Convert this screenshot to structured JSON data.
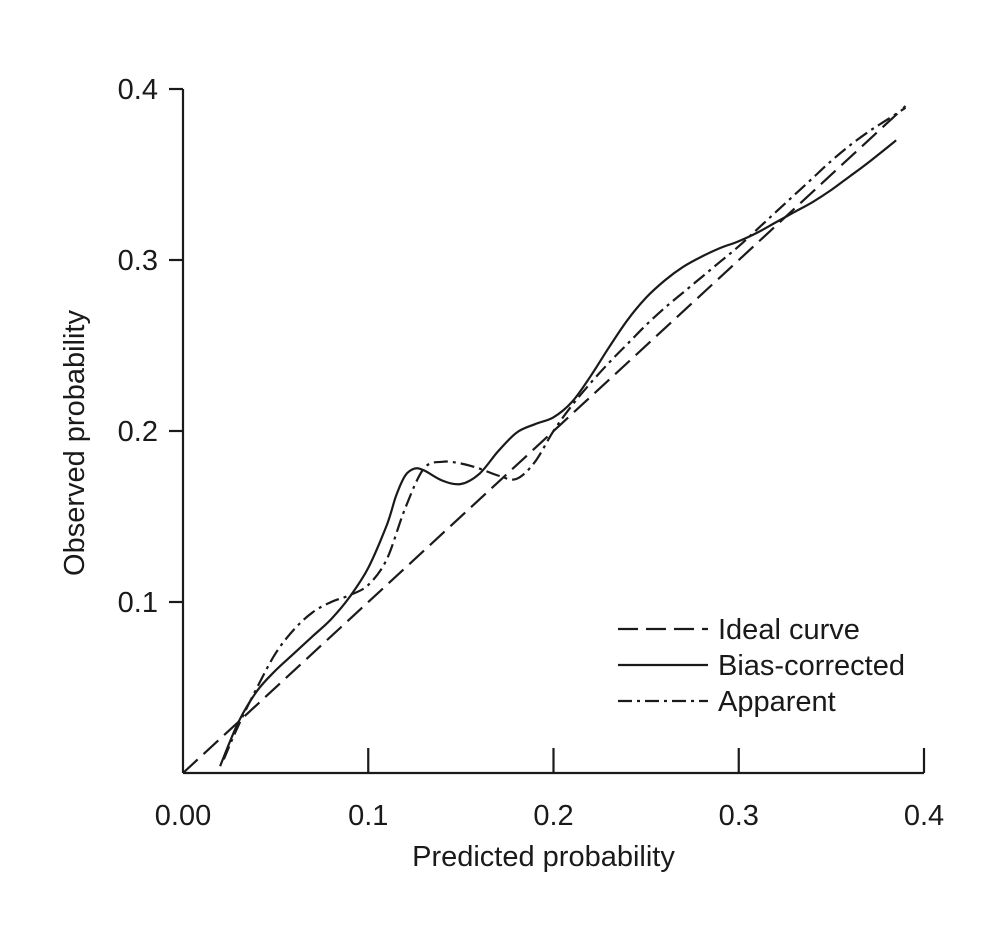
{
  "chart_data": {
    "type": "line",
    "xlabel": "Predicted probability",
    "ylabel": "Observed probability",
    "xlim": [
      0,
      0.4
    ],
    "ylim": [
      0,
      0.4
    ],
    "x_ticks": [
      {
        "value": 0.0,
        "label": "0.00"
      },
      {
        "value": 0.1,
        "label": "0.1"
      },
      {
        "value": 0.2,
        "label": "0.2"
      },
      {
        "value": 0.3,
        "label": "0.3"
      },
      {
        "value": 0.4,
        "label": "0.4"
      }
    ],
    "y_ticks": [
      {
        "value": 0.1,
        "label": "0.1"
      },
      {
        "value": 0.2,
        "label": "0.2"
      },
      {
        "value": 0.3,
        "label": "0.3"
      },
      {
        "value": 0.4,
        "label": "0.4"
      }
    ],
    "grid": false,
    "legend_position": "bottom-right",
    "series": [
      {
        "name": "Ideal curve",
        "style": "dashed",
        "color": "#1a1a1a",
        "x": [
          0.0,
          0.39
        ],
        "y": [
          0.0,
          0.39
        ]
      },
      {
        "name": "Bias-corrected",
        "style": "solid",
        "color": "#1a1a1a",
        "x": [
          0.02,
          0.03,
          0.04,
          0.05,
          0.06,
          0.07,
          0.08,
          0.09,
          0.1,
          0.11,
          0.115,
          0.12,
          0.125,
          0.13,
          0.14,
          0.15,
          0.16,
          0.17,
          0.18,
          0.19,
          0.2,
          0.21,
          0.22,
          0.23,
          0.24,
          0.25,
          0.26,
          0.27,
          0.28,
          0.29,
          0.3,
          0.31,
          0.32,
          0.33,
          0.34,
          0.35,
          0.36,
          0.37,
          0.385
        ],
        "y": [
          0.004,
          0.03,
          0.048,
          0.06,
          0.07,
          0.08,
          0.09,
          0.103,
          0.12,
          0.145,
          0.162,
          0.174,
          0.178,
          0.177,
          0.171,
          0.169,
          0.175,
          0.188,
          0.199,
          0.204,
          0.208,
          0.217,
          0.232,
          0.249,
          0.265,
          0.278,
          0.288,
          0.296,
          0.302,
          0.307,
          0.311,
          0.316,
          0.322,
          0.328,
          0.334,
          0.341,
          0.349,
          0.357,
          0.37
        ]
      },
      {
        "name": "Apparent",
        "style": "dashdot",
        "color": "#1a1a1a",
        "x": [
          0.022,
          0.03,
          0.04,
          0.05,
          0.06,
          0.07,
          0.08,
          0.09,
          0.1,
          0.11,
          0.12,
          0.13,
          0.14,
          0.15,
          0.16,
          0.17,
          0.18,
          0.19,
          0.2,
          0.21,
          0.22,
          0.23,
          0.24,
          0.25,
          0.26,
          0.27,
          0.28,
          0.29,
          0.3,
          0.31,
          0.32,
          0.33,
          0.34,
          0.35,
          0.36,
          0.37,
          0.38,
          0.39
        ],
        "y": [
          0.008,
          0.028,
          0.05,
          0.07,
          0.084,
          0.094,
          0.1,
          0.104,
          0.11,
          0.125,
          0.155,
          0.178,
          0.182,
          0.181,
          0.178,
          0.174,
          0.172,
          0.182,
          0.2,
          0.215,
          0.228,
          0.24,
          0.251,
          0.262,
          0.272,
          0.281,
          0.29,
          0.299,
          0.308,
          0.318,
          0.328,
          0.338,
          0.348,
          0.358,
          0.367,
          0.375,
          0.382,
          0.389
        ]
      }
    ]
  }
}
